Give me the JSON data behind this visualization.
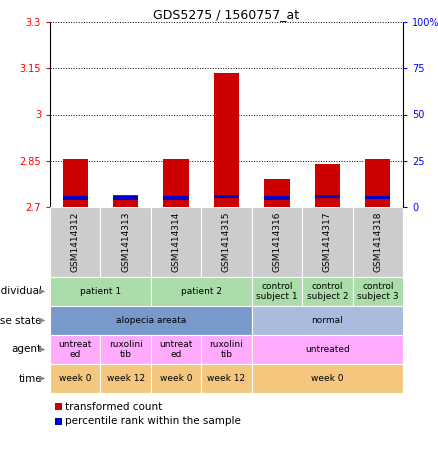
{
  "title": "GDS5275 / 1560757_at",
  "samples": [
    "GSM1414312",
    "GSM1414313",
    "GSM1414314",
    "GSM1414315",
    "GSM1414316",
    "GSM1414317",
    "GSM1414318"
  ],
  "red_values": [
    2.855,
    2.74,
    2.855,
    3.135,
    2.79,
    2.84,
    2.855
  ],
  "blue_values": [
    2.724,
    2.724,
    2.724,
    2.728,
    2.724,
    2.728,
    2.725
  ],
  "ylim_left": [
    2.7,
    3.3
  ],
  "ylim_right": [
    0,
    100
  ],
  "yticks_left": [
    2.7,
    2.85,
    3.0,
    3.15,
    3.3
  ],
  "ytick_labels_left": [
    "2.7",
    "2.85",
    "3",
    "3.15",
    "3.3"
  ],
  "yticks_right": [
    0,
    25,
    50,
    75,
    100
  ],
  "ytick_labels_right": [
    "0",
    "25",
    "50",
    "75",
    "100%"
  ],
  "bar_width": 0.5,
  "bar_color_red": "#cc0000",
  "bar_color_blue": "#0000cc",
  "background_chart": "#ffffff",
  "sample_label_bg": "#cccccc",
  "rows": [
    {
      "label": "individual",
      "cells": [
        {
          "text": "patient 1",
          "span": 2,
          "color": "#aaddaa"
        },
        {
          "text": "patient 2",
          "span": 2,
          "color": "#aaddaa"
        },
        {
          "text": "control\nsubject 1",
          "span": 1,
          "color": "#aaddaa"
        },
        {
          "text": "control\nsubject 2",
          "span": 1,
          "color": "#aaddaa"
        },
        {
          "text": "control\nsubject 3",
          "span": 1,
          "color": "#aaddaa"
        }
      ]
    },
    {
      "label": "disease state",
      "cells": [
        {
          "text": "alopecia areata",
          "span": 4,
          "color": "#7799cc"
        },
        {
          "text": "normal",
          "span": 3,
          "color": "#aabbdd"
        }
      ]
    },
    {
      "label": "agent",
      "cells": [
        {
          "text": "untreat\ned",
          "span": 1,
          "color": "#ffaaff"
        },
        {
          "text": "ruxolini\ntib",
          "span": 1,
          "color": "#ffaaff"
        },
        {
          "text": "untreat\ned",
          "span": 1,
          "color": "#ffaaff"
        },
        {
          "text": "ruxolini\ntib",
          "span": 1,
          "color": "#ffaaff"
        },
        {
          "text": "untreated",
          "span": 3,
          "color": "#ffaaff"
        }
      ]
    },
    {
      "label": "time",
      "cells": [
        {
          "text": "week 0",
          "span": 1,
          "color": "#f5c77e"
        },
        {
          "text": "week 12",
          "span": 1,
          "color": "#f5c77e"
        },
        {
          "text": "week 0",
          "span": 1,
          "color": "#f5c77e"
        },
        {
          "text": "week 12",
          "span": 1,
          "color": "#f5c77e"
        },
        {
          "text": "week 0",
          "span": 3,
          "color": "#f5c77e"
        }
      ]
    }
  ],
  "legend_red": "transformed count",
  "legend_blue": "percentile rank within the sample"
}
